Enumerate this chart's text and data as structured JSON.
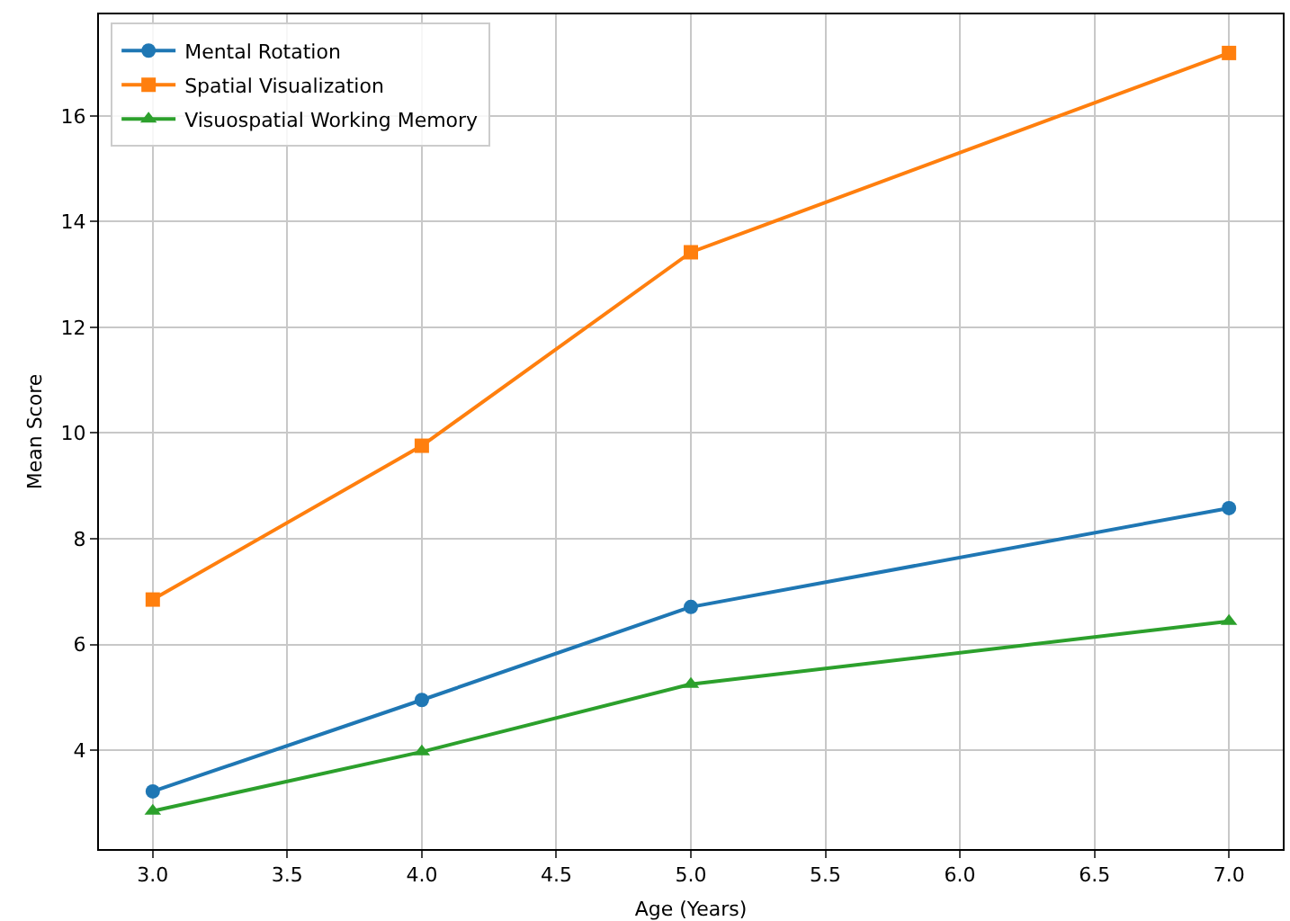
{
  "chart_data": {
    "type": "line",
    "xlabel": "Age (Years)",
    "ylabel": "Mean Score",
    "x": [
      3,
      4,
      5,
      7
    ],
    "series": [
      {
        "name": "Mental Rotation",
        "color": "#1f77b4",
        "marker": "circle",
        "values": [
          3.22,
          4.95,
          6.71,
          8.58
        ]
      },
      {
        "name": "Spatial Visualization",
        "color": "#ff7f0e",
        "marker": "square",
        "values": [
          6.85,
          9.76,
          13.42,
          17.19
        ]
      },
      {
        "name": "Visuospatial Working Memory",
        "color": "#2ca02c",
        "marker": "triangle",
        "values": [
          2.85,
          3.97,
          5.25,
          6.44
        ]
      }
    ],
    "xlim": [
      2.8,
      7.2
    ],
    "ylim": [
      2.13,
      17.92
    ],
    "xticks": [
      {
        "value": 3,
        "label": "3.0"
      },
      {
        "value": 3.5,
        "label": "3.5"
      },
      {
        "value": 4,
        "label": "4.0"
      },
      {
        "value": 4.5,
        "label": "4.5"
      },
      {
        "value": 5,
        "label": "5.0"
      },
      {
        "value": 5.5,
        "label": "5.5"
      },
      {
        "value": 6,
        "label": "6.0"
      },
      {
        "value": 6.5,
        "label": "6.5"
      },
      {
        "value": 7,
        "label": "7.0"
      }
    ],
    "yticks": [
      4,
      6,
      8,
      10,
      12,
      14,
      16
    ],
    "grid": true,
    "legend": "top left",
    "line_style": "solid"
  }
}
